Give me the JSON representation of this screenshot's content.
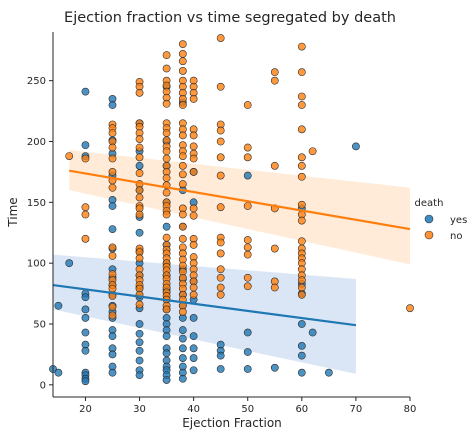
{
  "chart_data": {
    "type": "scatter",
    "title": "Ejection fraction vs time segregated by death",
    "xlabel": "Ejection Fraction",
    "ylabel": "Time",
    "xlim": [
      14,
      80
    ],
    "ylim": [
      -10,
      290
    ],
    "xticks": [
      20,
      30,
      40,
      50,
      60,
      70,
      80
    ],
    "yticks": [
      0,
      50,
      100,
      150,
      200,
      250
    ],
    "grid": false,
    "legend": {
      "title": "death",
      "placement": "right"
    },
    "series": [
      {
        "name": "yes",
        "color": "#1f77b4",
        "points": [
          [
            14,
            13
          ],
          [
            15,
            10
          ],
          [
            15,
            65
          ],
          [
            17,
            100
          ],
          [
            20,
            241
          ],
          [
            20,
            197
          ],
          [
            20,
            188
          ],
          [
            20,
            75
          ],
          [
            20,
            72
          ],
          [
            20,
            62
          ],
          [
            20,
            55
          ],
          [
            20,
            43
          ],
          [
            20,
            33
          ],
          [
            20,
            28
          ],
          [
            20,
            10
          ],
          [
            20,
            8
          ],
          [
            20,
            5
          ],
          [
            20,
            3
          ],
          [
            25,
            235
          ],
          [
            25,
            230
          ],
          [
            25,
            201
          ],
          [
            25,
            190
          ],
          [
            25,
            172
          ],
          [
            25,
            152
          ],
          [
            25,
            147
          ],
          [
            25,
            128
          ],
          [
            25,
            112
          ],
          [
            25,
            95
          ],
          [
            25,
            88
          ],
          [
            25,
            82
          ],
          [
            25,
            74
          ],
          [
            25,
            65
          ],
          [
            25,
            60
          ],
          [
            25,
            55
          ],
          [
            25,
            45
          ],
          [
            25,
            40
          ],
          [
            25,
            30
          ],
          [
            25,
            25
          ],
          [
            25,
            15
          ],
          [
            25,
            10
          ],
          [
            30,
            215
          ],
          [
            30,
            192
          ],
          [
            30,
            180
          ],
          [
            30,
            160
          ],
          [
            30,
            138
          ],
          [
            30,
            125
          ],
          [
            30,
            110
          ],
          [
            30,
            100
          ],
          [
            30,
            90
          ],
          [
            30,
            80
          ],
          [
            30,
            72
          ],
          [
            30,
            63
          ],
          [
            30,
            50
          ],
          [
            30,
            42
          ],
          [
            30,
            35
          ],
          [
            30,
            28
          ],
          [
            30,
            20
          ],
          [
            30,
            12
          ],
          [
            30,
            8
          ],
          [
            35,
            245
          ],
          [
            35,
            200
          ],
          [
            35,
            180
          ],
          [
            35,
            150
          ],
          [
            35,
            130
          ],
          [
            35,
            115
          ],
          [
            35,
            100
          ],
          [
            35,
            90
          ],
          [
            35,
            78
          ],
          [
            35,
            70
          ],
          [
            35,
            62
          ],
          [
            35,
            55
          ],
          [
            35,
            50
          ],
          [
            35,
            45
          ],
          [
            35,
            40
          ],
          [
            35,
            30
          ],
          [
            35,
            26
          ],
          [
            35,
            20
          ],
          [
            35,
            15
          ],
          [
            35,
            12
          ],
          [
            35,
            8
          ],
          [
            35,
            4
          ],
          [
            38,
            232
          ],
          [
            38,
            160
          ],
          [
            38,
            130
          ],
          [
            38,
            95
          ],
          [
            38,
            87
          ],
          [
            38,
            74
          ],
          [
            38,
            65
          ],
          [
            38,
            55
          ],
          [
            38,
            45
          ],
          [
            38,
            38
          ],
          [
            38,
            30
          ],
          [
            38,
            22
          ],
          [
            38,
            15
          ],
          [
            38,
            10
          ],
          [
            38,
            5
          ],
          [
            40,
            175
          ],
          [
            40,
            150
          ],
          [
            40,
            85
          ],
          [
            40,
            70
          ],
          [
            40,
            55
          ],
          [
            40,
            40
          ],
          [
            40,
            30
          ],
          [
            40,
            22
          ],
          [
            40,
            12
          ],
          [
            45,
            33
          ],
          [
            45,
            28
          ],
          [
            45,
            24
          ],
          [
            45,
            13
          ],
          [
            50,
            172
          ],
          [
            50,
            43
          ],
          [
            50,
            27
          ],
          [
            50,
            13
          ],
          [
            55,
            14
          ],
          [
            60,
            145
          ],
          [
            60,
            83
          ],
          [
            60,
            75
          ],
          [
            60,
            50
          ],
          [
            60,
            32
          ],
          [
            60,
            24
          ],
          [
            60,
            10
          ],
          [
            62,
            43
          ],
          [
            65,
            10
          ],
          [
            70,
            196
          ]
        ]
      },
      {
        "name": "no",
        "color": "#ff7f0e",
        "points": [
          [
            17,
            188
          ],
          [
            20,
            146
          ],
          [
            20,
            140
          ],
          [
            20,
            120
          ],
          [
            20,
            186
          ],
          [
            25,
            214
          ],
          [
            25,
            211
          ],
          [
            25,
            207
          ],
          [
            25,
            200
          ],
          [
            25,
            195
          ],
          [
            25,
            186
          ],
          [
            25,
            175
          ],
          [
            25,
            168
          ],
          [
            25,
            162
          ],
          [
            25,
            113
          ],
          [
            25,
            106
          ],
          [
            25,
            91
          ],
          [
            25,
            86
          ],
          [
            25,
            82
          ],
          [
            25,
            79
          ],
          [
            25,
            73
          ],
          [
            25,
            64
          ],
          [
            25,
            57
          ],
          [
            30,
            249
          ],
          [
            30,
            245
          ],
          [
            30,
            240
          ],
          [
            30,
            215
          ],
          [
            30,
            212
          ],
          [
            30,
            207
          ],
          [
            30,
            202
          ],
          [
            30,
            195
          ],
          [
            30,
            187
          ],
          [
            30,
            174
          ],
          [
            30,
            165
          ],
          [
            30,
            160
          ],
          [
            30,
            154
          ],
          [
            30,
            147
          ],
          [
            30,
            145
          ],
          [
            30,
            140
          ],
          [
            30,
            112
          ],
          [
            30,
            109
          ],
          [
            30,
            104
          ],
          [
            30,
            95
          ],
          [
            30,
            90
          ],
          [
            30,
            86
          ],
          [
            30,
            82
          ],
          [
            30,
            79
          ],
          [
            30,
            74
          ],
          [
            30,
            66
          ],
          [
            35,
            271
          ],
          [
            35,
            260
          ],
          [
            35,
            250
          ],
          [
            35,
            246
          ],
          [
            35,
            241
          ],
          [
            35,
            236
          ],
          [
            35,
            231
          ],
          [
            35,
            215
          ],
          [
            35,
            211
          ],
          [
            35,
            207
          ],
          [
            35,
            201
          ],
          [
            35,
            196
          ],
          [
            35,
            192
          ],
          [
            35,
            186
          ],
          [
            35,
            180
          ],
          [
            35,
            175
          ],
          [
            35,
            170
          ],
          [
            35,
            164
          ],
          [
            35,
            158
          ],
          [
            35,
            150
          ],
          [
            35,
            147
          ],
          [
            35,
            143
          ],
          [
            35,
            140
          ],
          [
            35,
            121
          ],
          [
            35,
            115
          ],
          [
            35,
            111
          ],
          [
            35,
            108
          ],
          [
            35,
            104
          ],
          [
            35,
            100
          ],
          [
            35,
            97
          ],
          [
            35,
            94
          ],
          [
            35,
            90
          ],
          [
            35,
            87
          ],
          [
            35,
            83
          ],
          [
            35,
            80
          ],
          [
            35,
            76
          ],
          [
            35,
            73
          ],
          [
            35,
            70
          ],
          [
            35,
            65
          ],
          [
            35,
            62
          ],
          [
            38,
            280
          ],
          [
            38,
            272
          ],
          [
            38,
            266
          ],
          [
            38,
            258
          ],
          [
            38,
            250
          ],
          [
            38,
            245
          ],
          [
            38,
            240
          ],
          [
            38,
            235
          ],
          [
            38,
            230
          ],
          [
            38,
            215
          ],
          [
            38,
            210
          ],
          [
            38,
            205
          ],
          [
            38,
            197
          ],
          [
            38,
            192
          ],
          [
            38,
            188
          ],
          [
            38,
            180
          ],
          [
            38,
            173
          ],
          [
            38,
            165
          ],
          [
            38,
            145
          ],
          [
            38,
            140
          ],
          [
            38,
            130
          ],
          [
            38,
            120
          ],
          [
            38,
            113
          ],
          [
            38,
            108
          ],
          [
            38,
            103
          ],
          [
            38,
            98
          ],
          [
            38,
            93
          ],
          [
            38,
            88
          ],
          [
            38,
            83
          ],
          [
            38,
            79
          ],
          [
            38,
            74
          ],
          [
            38,
            70
          ],
          [
            38,
            65
          ],
          [
            38,
            60
          ],
          [
            40,
            250
          ],
          [
            40,
            245
          ],
          [
            40,
            240
          ],
          [
            40,
            235
          ],
          [
            40,
            210
          ],
          [
            40,
            205
          ],
          [
            40,
            196
          ],
          [
            40,
            190
          ],
          [
            40,
            186
          ],
          [
            40,
            175
          ],
          [
            40,
            145
          ],
          [
            40,
            139
          ],
          [
            40,
            120
          ],
          [
            40,
            115
          ],
          [
            40,
            105
          ],
          [
            40,
            100
          ],
          [
            40,
            95
          ],
          [
            40,
            90
          ],
          [
            40,
            85
          ],
          [
            40,
            80
          ],
          [
            40,
            74
          ],
          [
            45,
            285
          ],
          [
            45,
            245
          ],
          [
            45,
            214
          ],
          [
            45,
            209
          ],
          [
            45,
            200
          ],
          [
            45,
            187
          ],
          [
            45,
            172
          ],
          [
            45,
            146
          ],
          [
            45,
            121
          ],
          [
            45,
            117
          ],
          [
            45,
            108
          ],
          [
            45,
            95
          ],
          [
            45,
            88
          ],
          [
            45,
            80
          ],
          [
            45,
            74
          ],
          [
            50,
            230
          ],
          [
            50,
            195
          ],
          [
            50,
            187
          ],
          [
            50,
            147
          ],
          [
            50,
            119
          ],
          [
            50,
            113
          ],
          [
            50,
            107
          ],
          [
            50,
            88
          ],
          [
            50,
            81
          ],
          [
            55,
            257
          ],
          [
            55,
            250
          ],
          [
            55,
            180
          ],
          [
            55,
            145
          ],
          [
            55,
            112
          ],
          [
            55,
            85
          ],
          [
            55,
            80
          ],
          [
            60,
            278
          ],
          [
            60,
            257
          ],
          [
            60,
            237
          ],
          [
            60,
            230
          ],
          [
            60,
            210
          ],
          [
            60,
            187
          ],
          [
            60,
            180
          ],
          [
            60,
            171
          ],
          [
            60,
            148
          ],
          [
            60,
            140
          ],
          [
            60,
            135
          ],
          [
            60,
            118
          ],
          [
            60,
            112
          ],
          [
            60,
            108
          ],
          [
            60,
            104
          ],
          [
            60,
            100
          ],
          [
            60,
            95
          ],
          [
            60,
            90
          ],
          [
            60,
            86
          ],
          [
            60,
            80
          ],
          [
            60,
            74
          ],
          [
            62,
            192
          ],
          [
            80,
            63
          ]
        ]
      }
    ],
    "regression": [
      {
        "series": "yes",
        "color": "#1f77b4",
        "band_color": "#aec7e8",
        "x": [
          14,
          70
        ],
        "y": [
          82,
          49
        ],
        "band_upper": [
          107,
          87
        ],
        "band_lower": [
          62,
          9
        ]
      },
      {
        "series": "no",
        "color": "#ff7f0e",
        "band_color": "#ffd3a8",
        "x": [
          17,
          80
        ],
        "y": [
          176,
          128
        ],
        "band_upper": [
          193,
          162
        ],
        "band_lower": [
          160,
          99
        ]
      }
    ]
  }
}
